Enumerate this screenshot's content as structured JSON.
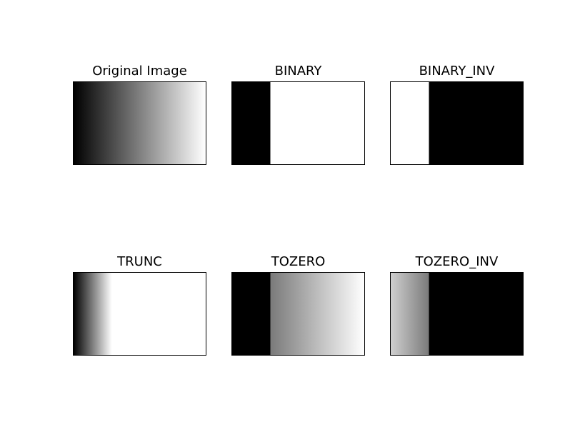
{
  "figure": {
    "panels": [
      {
        "title": "Original Image"
      },
      {
        "title": "BINARY"
      },
      {
        "title": "BINARY_INV"
      },
      {
        "title": "TRUNC"
      },
      {
        "title": "TOZERO"
      },
      {
        "title": "TOZERO_INV"
      }
    ]
  }
}
